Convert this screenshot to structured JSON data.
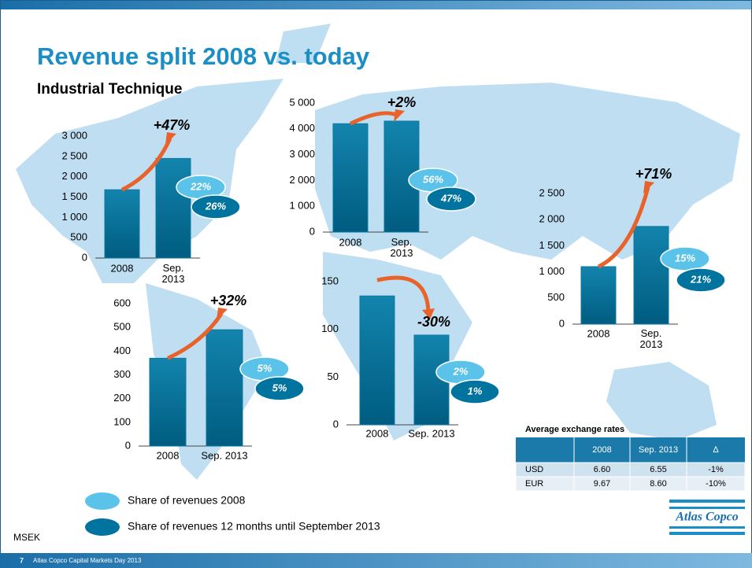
{
  "title": "Revenue split 2008 vs. today",
  "subtitle": "Industrial Technique",
  "unit": "MSEK",
  "legend": [
    {
      "name": "Share of revenues 2008",
      "color": "#5bc3ea"
    },
    {
      "name": "Share of revenues 12 months until September 2013",
      "color": "#00739e"
    }
  ],
  "chart_data": [
    {
      "type": "bar",
      "categories": [
        "2008",
        "Sep. 2013"
      ],
      "values": [
        1680,
        2450
      ],
      "color": "#0a79a3",
      "ylim": [
        0,
        3000
      ],
      "yticks": [
        0,
        500,
        {
          "value": 1000,
          "label": "1 000"
        },
        {
          "value": 1500,
          "label": "1 500"
        },
        {
          "value": 2000,
          "label": "2 000"
        },
        {
          "value": 2500,
          "label": "2 500"
        },
        {
          "value": 3000,
          "label": "3 000"
        }
      ],
      "annotation": "+47%",
      "shares": {
        "values": [
          22,
          26
        ],
        "value_labels": [
          "22%",
          "26%"
        ]
      },
      "wrap_categories": true
    },
    {
      "type": "bar",
      "categories": [
        "2008",
        "Sep. 2013"
      ],
      "values": [
        4200,
        4300
      ],
      "color": "#0a79a3",
      "ylim": [
        0,
        5000
      ],
      "yticks": [
        0,
        {
          "value": 1000,
          "label": "1 000"
        },
        {
          "value": 2000,
          "label": "2 000"
        },
        {
          "value": 3000,
          "label": "3 000"
        },
        {
          "value": 4000,
          "label": "4 000"
        },
        {
          "value": 5000,
          "label": "5 000"
        }
      ],
      "annotation": "+2%",
      "shares": {
        "values": [
          56,
          47
        ],
        "value_labels": [
          "56%",
          "47%"
        ]
      },
      "wrap_categories": true
    },
    {
      "type": "bar",
      "categories": [
        "2008",
        "Sep. 2013"
      ],
      "values": [
        1100,
        1870
      ],
      "color": "#0a79a3",
      "ylim": [
        0,
        2500
      ],
      "yticks": [
        0,
        500,
        {
          "value": 1000,
          "label": "1 000"
        },
        {
          "value": 1500,
          "label": "1 500"
        },
        {
          "value": 2000,
          "label": "2 000"
        },
        {
          "value": 2500,
          "label": "2 500"
        }
      ],
      "annotation": "+71%",
      "shares": {
        "values": [
          15,
          21
        ],
        "value_labels": [
          "15%",
          "21%"
        ]
      },
      "wrap_categories": true
    },
    {
      "type": "bar",
      "categories": [
        "2008",
        "Sep. 2013"
      ],
      "values": [
        370,
        490
      ],
      "color": "#0a79a3",
      "ylim": [
        0,
        600
      ],
      "yticks": [
        0,
        100,
        200,
        300,
        400,
        500,
        600
      ],
      "annotation": "+32%",
      "shares": {
        "values": [
          5,
          5
        ],
        "value_labels": [
          "5%",
          "5%"
        ]
      },
      "wrap_categories": false
    },
    {
      "type": "bar",
      "categories": [
        "2008",
        "Sep. 2013"
      ],
      "values": [
        135,
        94
      ],
      "color": "#0a79a3",
      "ylim": [
        0,
        150
      ],
      "yticks": [
        0,
        50,
        100,
        150
      ],
      "annotation": "-30%",
      "shares": {
        "values": [
          2,
          1
        ],
        "value_labels": [
          "2%",
          "1%"
        ]
      },
      "wrap_categories": false
    }
  ],
  "table": {
    "title": "Average exchange rates",
    "header": [
      "2008",
      "Sep. 2013",
      "Δ"
    ],
    "rows": [
      [
        "USD",
        "6.60",
        "6.55",
        "-1%"
      ],
      [
        "EUR",
        "9.67",
        "8.60",
        "-10%"
      ]
    ]
  },
  "footer": {
    "page": "7",
    "text": "Atlas Copco Capital Markets Day 2013"
  },
  "logo": "Atlas Copco"
}
